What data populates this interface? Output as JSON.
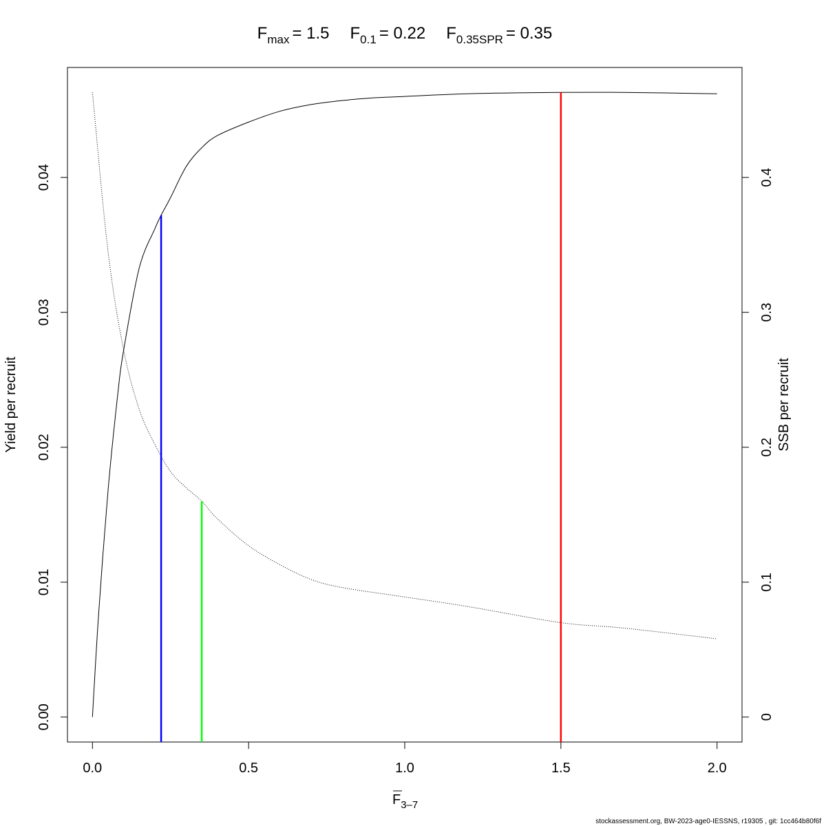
{
  "title": {
    "fmax_label": "max",
    "fmax_value": "= 1.5",
    "f01_label": "0.1",
    "f01_value": "= 0.22",
    "fspr_label": "0.35SPR",
    "fspr_value": "= 0.35",
    "F": "F"
  },
  "footer": "stockassessment.org, BW-2023-age0-IESSNS, r19305 , git: 1cc464b80f6f",
  "chart_data": {
    "type": "line",
    "xlabel": "F",
    "xlabel_sub": "3–7",
    "ylabel_left": "Yield per recruit",
    "ylabel_right": "SSB per recruit",
    "xlim": [
      -0.08,
      2.08
    ],
    "ylim_left": [
      -0.00185,
      0.04815
    ],
    "ylim_right": [
      -0.0185,
      0.4815
    ],
    "x_ticks": [
      "0.0",
      "0.5",
      "1.0",
      "1.5",
      "2.0"
    ],
    "x_tick_values": [
      0,
      0.5,
      1.0,
      1.5,
      2.0
    ],
    "y_left_ticks": [
      "0.00",
      "0.01",
      "0.02",
      "0.03",
      "0.04"
    ],
    "y_left_tick_values": [
      0,
      0.01,
      0.02,
      0.03,
      0.04
    ],
    "y_right_ticks": [
      "0",
      "0.1",
      "0.2",
      "0.3",
      "0.4"
    ],
    "y_right_tick_values": [
      0,
      0.1,
      0.2,
      0.3,
      0.4
    ],
    "series": [
      {
        "axis": "left",
        "style": "solid",
        "color": "#000000",
        "x": [
          0,
          0.02,
          0.05,
          0.08,
          0.1,
          0.15,
          0.2,
          0.22,
          0.25,
          0.3,
          0.35,
          0.4,
          0.5,
          0.6,
          0.7,
          0.8,
          0.9,
          1.0,
          1.2,
          1.5,
          1.7,
          2.0
        ],
        "y": [
          0,
          0.0077,
          0.0168,
          0.0237,
          0.0272,
          0.0333,
          0.0362,
          0.0372,
          0.0385,
          0.0408,
          0.0422,
          0.0431,
          0.0441,
          0.0449,
          0.0454,
          0.0457,
          0.0459,
          0.046,
          0.0462,
          0.0463,
          0.0463,
          0.0462
        ]
      },
      {
        "axis": "right",
        "style": "dotted",
        "color": "#000000",
        "x": [
          0,
          0.05,
          0.1,
          0.15,
          0.2,
          0.25,
          0.3,
          0.35,
          0.4,
          0.5,
          0.6,
          0.7,
          0.8,
          1.0,
          1.2,
          1.5,
          1.7,
          2.0
        ],
        "y": [
          0.463,
          0.345,
          0.272,
          0.228,
          0.202,
          0.182,
          0.17,
          0.16,
          0.147,
          0.127,
          0.113,
          0.102,
          0.096,
          0.089,
          0.082,
          0.07,
          0.066,
          0.058
        ]
      }
    ],
    "reference_lines": [
      {
        "name": "F0.1",
        "x": 0.22,
        "axis": "left",
        "y_top": 0.0372,
        "color": "#0000ff"
      },
      {
        "name": "F0.35SPR",
        "x": 0.35,
        "axis": "right",
        "y_top": 0.16,
        "color": "#00ff00"
      },
      {
        "name": "Fmax",
        "x": 1.5,
        "axis": "left",
        "y_top": 0.0463,
        "color": "#ff0000"
      }
    ],
    "grid": false,
    "legend": "none"
  }
}
